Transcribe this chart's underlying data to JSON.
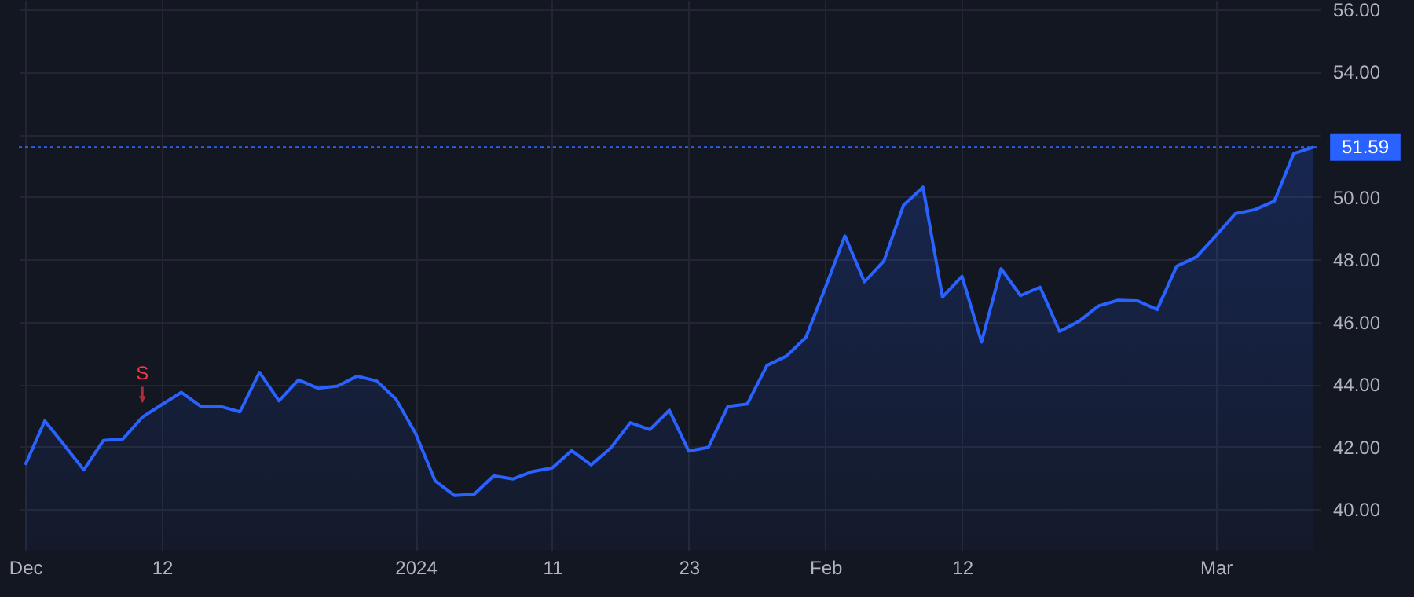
{
  "chart_data": {
    "type": "area",
    "categories": [
      "Dec",
      null,
      null,
      null,
      null,
      null,
      null,
      "12",
      null,
      null,
      null,
      null,
      null,
      null,
      null,
      null,
      null,
      null,
      null,
      null,
      "2024",
      null,
      null,
      null,
      null,
      null,
      null,
      "11",
      null,
      null,
      null,
      null,
      null,
      null,
      "23",
      null,
      null,
      null,
      null,
      null,
      null,
      "Feb",
      null,
      null,
      null,
      null,
      null,
      null,
      "12",
      null,
      null,
      null,
      null,
      null,
      null,
      null,
      null,
      null,
      null,
      null,
      null,
      "Mar",
      null,
      null,
      null,
      null,
      null
    ],
    "values": [
      41.42,
      42.83,
      42.05,
      41.26,
      42.2,
      42.25,
      42.95,
      43.35,
      43.74,
      43.29,
      43.29,
      43.12,
      44.38,
      43.47,
      44.14,
      43.87,
      43.94,
      44.26,
      44.11,
      43.52,
      42.43,
      40.91,
      40.44,
      40.48,
      41.07,
      40.97,
      41.21,
      41.32,
      41.88,
      41.42,
      41.96,
      42.77,
      42.55,
      43.17,
      41.86,
      41.98,
      43.29,
      43.37,
      44.6,
      44.9,
      45.5,
      47.1,
      48.75,
      47.28,
      47.95,
      49.73,
      50.31,
      46.79,
      47.46,
      45.35,
      47.7,
      46.84,
      47.11,
      45.69,
      46.02,
      46.51,
      46.69,
      46.67,
      46.39,
      47.78,
      48.07,
      48.75,
      49.46,
      49.59,
      49.86,
      51.39,
      51.59
    ],
    "color": "#2962ff",
    "ylim": [
      38.7,
      56.3
    ],
    "yticks": [
      {
        "value": 40,
        "label": "40.00"
      },
      {
        "value": 42,
        "label": "42.00"
      },
      {
        "value": 44,
        "label": "44.00"
      },
      {
        "value": 46,
        "label": "46.00"
      },
      {
        "value": 48,
        "label": "48.00"
      },
      {
        "value": 50,
        "label": "50.00"
      },
      {
        "value": 52,
        "label": null
      },
      {
        "value": 54,
        "label": "54.00"
      },
      {
        "value": 56,
        "label": "56.00"
      }
    ],
    "ref_lines": [
      {
        "axis": "y",
        "value": 51.59,
        "label": "51.59",
        "color": "#2962ff",
        "line_style": "dotted"
      }
    ],
    "annotations": [
      {
        "text": "S",
        "y": 42.95
      }
    ],
    "grid": true,
    "marker": "none"
  }
}
